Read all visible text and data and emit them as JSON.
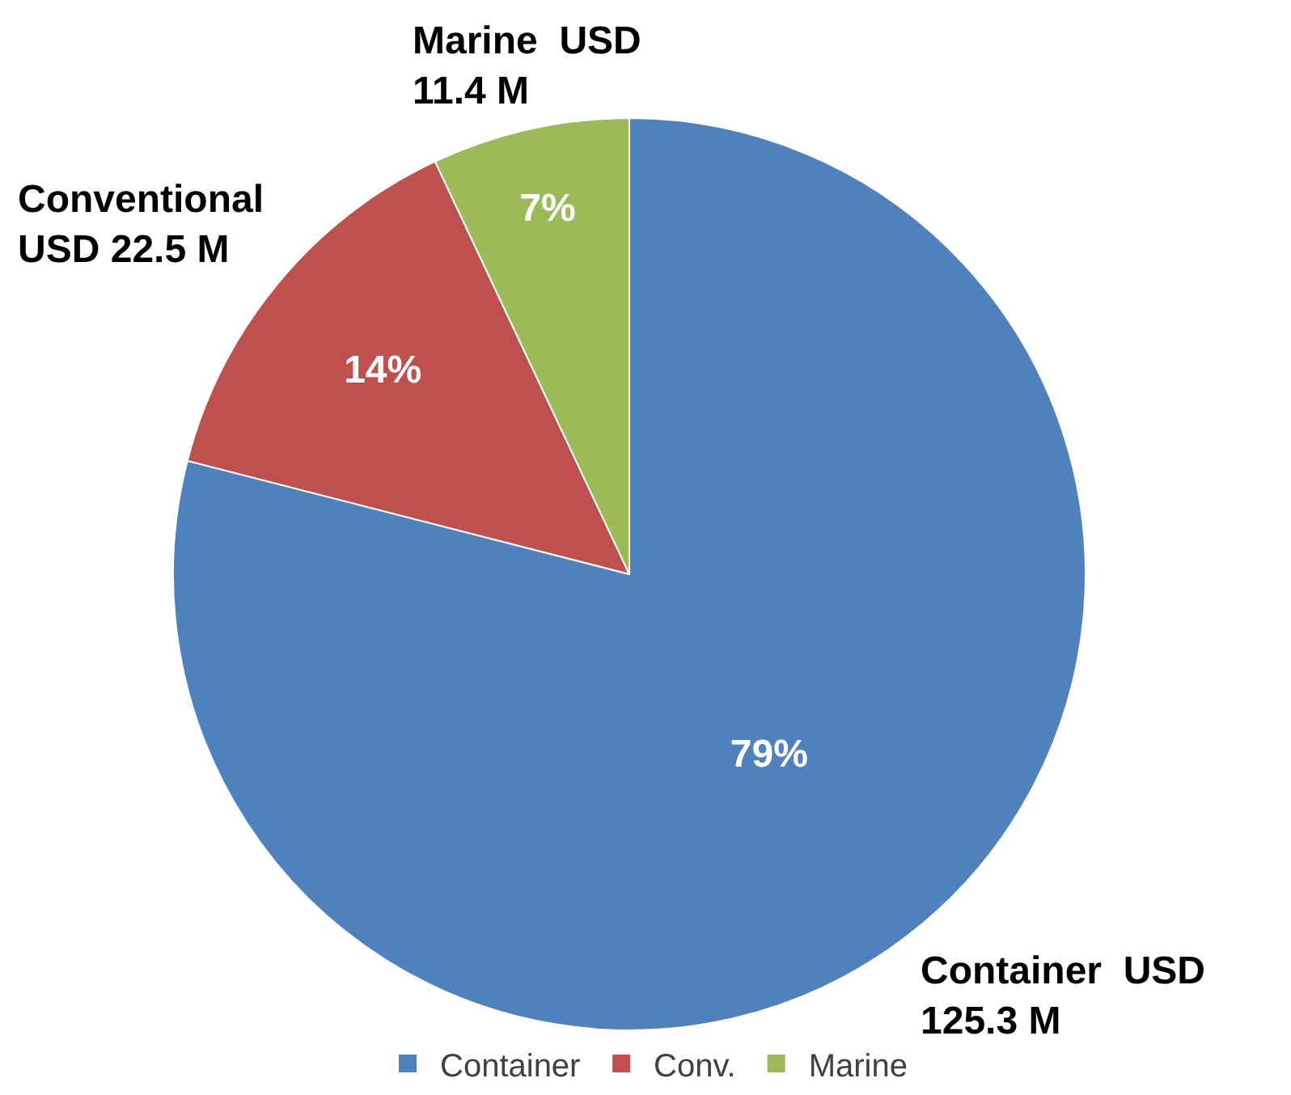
{
  "chart_data": {
    "type": "pie",
    "categories": [
      "Container",
      "Conv.",
      "Marine"
    ],
    "values": [
      79,
      14,
      7
    ],
    "colors": [
      "#4f81bd",
      "#c0504d",
      "#9bbb59"
    ],
    "value_labels": [
      "79%",
      "14%",
      "7%"
    ],
    "annotations": [
      "Container  USD\n125.3 M",
      "Conventional\nUSD 22.5 M",
      "Marine  USD\n11.4 M"
    ],
    "legend": "bottom"
  }
}
